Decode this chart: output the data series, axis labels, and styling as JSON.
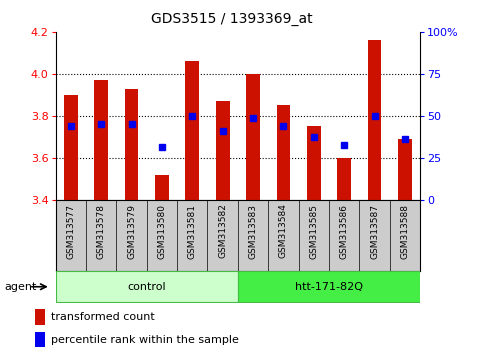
{
  "title": "GDS3515 / 1393369_at",
  "samples": [
    "GSM313577",
    "GSM313578",
    "GSM313579",
    "GSM313580",
    "GSM313581",
    "GSM313582",
    "GSM313583",
    "GSM313584",
    "GSM313585",
    "GSM313586",
    "GSM313587",
    "GSM313588"
  ],
  "bar_tops": [
    3.9,
    3.97,
    3.93,
    3.52,
    4.06,
    3.87,
    4.0,
    3.85,
    3.75,
    3.6,
    4.16,
    3.69
  ],
  "bar_bottom": 3.4,
  "percentile_values": [
    3.75,
    3.76,
    3.76,
    3.65,
    3.8,
    3.73,
    3.79,
    3.75,
    3.7,
    3.66,
    3.8,
    3.69
  ],
  "bar_color": "#CC1100",
  "percentile_color": "#0000EE",
  "ylim_left": [
    3.4,
    4.2
  ],
  "ylim_right": [
    0,
    100
  ],
  "yticks_left": [
    3.4,
    3.6,
    3.8,
    4.0,
    4.2
  ],
  "yticks_right": [
    0,
    25,
    50,
    75,
    100
  ],
  "ytick_labels_right": [
    "0",
    "25",
    "50",
    "75",
    "100%"
  ],
  "groups": [
    {
      "label": "control",
      "start": 0,
      "end": 5,
      "color": "#CCFFCC",
      "edge": "#44BB44"
    },
    {
      "label": "htt-171-82Q",
      "start": 6,
      "end": 11,
      "color": "#44EE44",
      "edge": "#44BB44"
    }
  ],
  "group_label_left": "agent",
  "legend_items": [
    {
      "label": "transformed count",
      "color": "#CC1100"
    },
    {
      "label": "percentile rank within the sample",
      "color": "#0000EE"
    }
  ],
  "bar_width": 0.45,
  "title_fontsize": 10,
  "label_fontsize": 6.5,
  "group_fontsize": 8,
  "legend_fontsize": 8,
  "axis_fontsize": 8
}
